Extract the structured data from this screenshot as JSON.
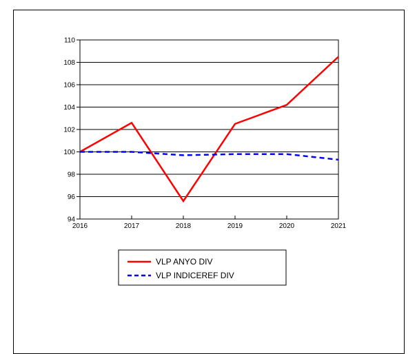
{
  "chart_data": {
    "type": "line",
    "x": [
      2016,
      2017,
      2018,
      2019,
      2020,
      2021
    ],
    "x_tick_labels": [
      "2016",
      "2017",
      "2018",
      "2019",
      "2020",
      "2021"
    ],
    "y_tick_labels": [
      "94",
      "96",
      "98",
      "100",
      "102",
      "104",
      "106",
      "108",
      "110"
    ],
    "ylim": [
      94,
      110
    ],
    "grid": "horizontal",
    "legend_position": "bottom",
    "series": [
      {
        "name": "VLP ANYO DIV",
        "values": [
          100.0,
          102.6,
          95.6,
          102.5,
          104.2,
          108.5
        ],
        "color": "#ff0000",
        "style": "solid"
      },
      {
        "name": "VLP INDICEREF DIV",
        "values": [
          100.0,
          100.0,
          99.7,
          99.8,
          99.8,
          99.3
        ],
        "color": "#0000ff",
        "style": "dashed"
      }
    ]
  }
}
